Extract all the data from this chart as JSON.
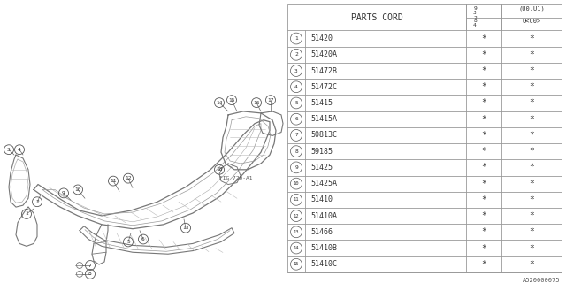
{
  "bg_color": "#ffffff",
  "parts_cord_header": "PARTS CORD",
  "header1_line1": "9",
  "header1_line2": "3",
  "header1_line3": "2",
  "header2_top": "(U0,U1)",
  "header2_bot": "U<C0>",
  "header2_line1": "8",
  "header2_line2": "4",
  "rows": [
    {
      "num": 1,
      "code": "51420"
    },
    {
      "num": 2,
      "code": "51420A"
    },
    {
      "num": 3,
      "code": "51472B"
    },
    {
      "num": 4,
      "code": "51472C"
    },
    {
      "num": 5,
      "code": "51415"
    },
    {
      "num": 6,
      "code": "51415A"
    },
    {
      "num": 7,
      "code": "50813C"
    },
    {
      "num": 8,
      "code": "59185"
    },
    {
      "num": 9,
      "code": "51425"
    },
    {
      "num": 10,
      "code": "51425A"
    },
    {
      "num": 11,
      "code": "51410"
    },
    {
      "num": 12,
      "code": "51410A"
    },
    {
      "num": 13,
      "code": "51466"
    },
    {
      "num": 14,
      "code": "51410B"
    },
    {
      "num": 15,
      "code": "51410C"
    }
  ],
  "footer_code": "A520000075",
  "table_line_color": "#999999",
  "text_color": "#333333",
  "draw_line_color": "#888888"
}
